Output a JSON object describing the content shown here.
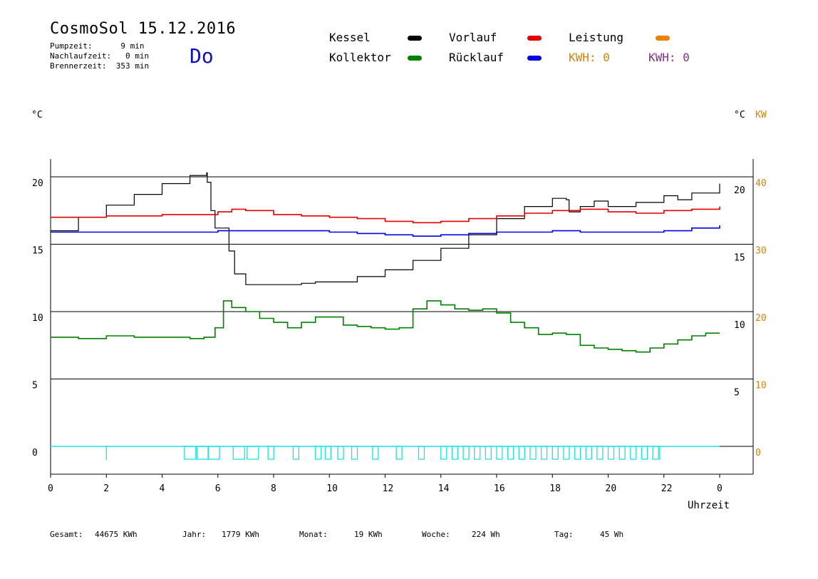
{
  "header": {
    "title": "CosmoSol 15.12.2016",
    "pump_line": "Pumpzeit:      9 min",
    "nachlauf_line": "Nachlaufzeit:   0 min",
    "brenner_line": "Brennerzeit:  353 min",
    "weekday": "Do"
  },
  "legend": {
    "kessel": "Kessel",
    "kollektor": "Kollektor",
    "vorlauf": "Vorlauf",
    "ruecklauf": "Rücklauf",
    "leistung": "Leistung",
    "kwh1": "KWH: 0",
    "kwh2": "KWH: 0",
    "colors": {
      "kessel": "#000000",
      "kollektor": "#008000",
      "vorlauf": "#e00000",
      "ruecklauf": "#0000e0",
      "leistung": "#f08000",
      "kwh1": "#e08000",
      "kwh2": "#8b2f8b",
      "pump": "#20e0e0"
    }
  },
  "axes": {
    "left_unit": "°C",
    "right_unit_c": "°C",
    "right_unit_kw": "KW",
    "x_label": "Uhrzeit"
  },
  "stats": {
    "gesamt_label": "Gesamt:",
    "gesamt_value": "44675 KWh",
    "jahr_label": "Jahr:",
    "jahr_value": "1779 KWh",
    "monat_label": "Monat:",
    "monat_value": "19 KWh",
    "woche_label": "Woche:",
    "woche_value": "224 Wh",
    "tag_label": "Tag:",
    "tag_value": "45 Wh"
  },
  "chart_data": {
    "type": "line",
    "xlabel": "Uhrzeit",
    "ylabel": "°C",
    "x_ticks": [
      "0",
      "2",
      "4",
      "6",
      "8",
      "10",
      "12",
      "14",
      "16",
      "18",
      "20",
      "22",
      "0"
    ],
    "xlim": [
      0,
      24
    ],
    "left_ticks": [
      "20",
      "15",
      "10",
      "5",
      "0"
    ],
    "left_ylim": [
      -2,
      21.3
    ],
    "right_ticks_c": [
      "20",
      "15",
      "10",
      "5"
    ],
    "right_ticks_kw": [
      "40",
      "30",
      "20",
      "10",
      "0"
    ],
    "grid": true,
    "series": [
      {
        "name": "Kessel",
        "color": "#000000",
        "x": [
          0,
          1,
          2,
          3,
          4,
          5,
          5.6,
          5.62,
          5.75,
          5.9,
          6.2,
          6.4,
          6.6,
          7,
          8,
          9,
          9.5,
          10,
          11,
          12,
          13,
          14,
          15,
          16,
          17,
          18,
          18.5,
          18.6,
          19,
          19.5,
          20,
          21,
          22,
          22.5,
          23,
          24
        ],
        "y": [
          16.0,
          17.0,
          17.9,
          18.7,
          19.5,
          20.1,
          20.3,
          19.6,
          17.5,
          16.2,
          16.2,
          14.5,
          12.8,
          12.0,
          12.0,
          12.1,
          12.2,
          12.2,
          12.6,
          13.1,
          13.8,
          14.7,
          15.7,
          16.9,
          17.8,
          18.4,
          18.3,
          17.4,
          17.8,
          18.2,
          17.8,
          18.1,
          18.6,
          18.3,
          18.8,
          19.5
        ]
      },
      {
        "name": "Vorlauf",
        "color": "#e00000",
        "x": [
          0,
          2,
          4,
          5.5,
          6,
          6.5,
          7,
          8,
          9,
          10,
          11,
          12,
          13,
          14,
          15,
          16,
          17,
          18,
          19,
          20,
          21,
          22,
          23,
          24
        ],
        "y": [
          17.0,
          17.1,
          17.2,
          17.2,
          17.4,
          17.6,
          17.5,
          17.2,
          17.1,
          17.0,
          16.9,
          16.7,
          16.6,
          16.7,
          16.9,
          17.1,
          17.3,
          17.5,
          17.6,
          17.4,
          17.3,
          17.5,
          17.6,
          17.8
        ]
      },
      {
        "name": "Rücklauf",
        "color": "#0000e0",
        "x": [
          0,
          2,
          4,
          5.5,
          6,
          7,
          8,
          9,
          10,
          11,
          12,
          13,
          14,
          15,
          16,
          17,
          18,
          19,
          20,
          21,
          22,
          23,
          24
        ],
        "y": [
          15.9,
          15.9,
          15.9,
          15.9,
          16.0,
          16.0,
          16.0,
          16.0,
          15.9,
          15.8,
          15.7,
          15.6,
          15.7,
          15.8,
          15.9,
          15.9,
          16.0,
          15.9,
          15.9,
          15.9,
          16.0,
          16.2,
          16.4
        ]
      },
      {
        "name": "Kollektor",
        "color": "#008000",
        "x": [
          0,
          1,
          2,
          3,
          4,
          5,
          5.5,
          5.9,
          6.2,
          6.5,
          7,
          7.5,
          8,
          8.5,
          9,
          9.5,
          10,
          10.5,
          11,
          11.5,
          12,
          12.5,
          13,
          13.5,
          14,
          14.5,
          15,
          15.5,
          16,
          16.5,
          17,
          17.5,
          18,
          18.5,
          19,
          19.5,
          20,
          20.5,
          21,
          21.5,
          22,
          22.5,
          23,
          23.5,
          24
        ],
        "y": [
          8.1,
          8.0,
          8.2,
          8.1,
          8.1,
          8.0,
          8.1,
          8.8,
          10.8,
          10.3,
          10.0,
          9.5,
          9.2,
          8.8,
          9.2,
          9.6,
          9.6,
          9.0,
          8.9,
          8.8,
          8.7,
          8.8,
          10.2,
          10.8,
          10.5,
          10.2,
          10.1,
          10.2,
          9.9,
          9.2,
          8.8,
          8.3,
          8.4,
          8.3,
          7.5,
          7.3,
          7.2,
          7.1,
          7.0,
          7.3,
          7.6,
          7.9,
          8.2,
          8.4,
          8.4
        ]
      }
    ],
    "pump_pulses_hours": [
      4.8,
      5.25,
      5.65,
      6.55,
      7.05,
      7.8,
      8.7,
      9.5,
      9.85,
      10.3,
      10.8,
      11.55,
      12.4,
      13.2,
      14.0,
      14.4,
      14.8,
      15.2,
      15.6,
      16.0,
      16.4,
      16.8,
      17.2,
      17.6,
      18.0,
      18.4,
      18.8,
      19.2,
      19.6,
      20.0,
      20.4,
      20.8,
      21.2,
      21.6
    ],
    "pump_spikes_hours": [
      2.0,
      21.85
    ]
  }
}
